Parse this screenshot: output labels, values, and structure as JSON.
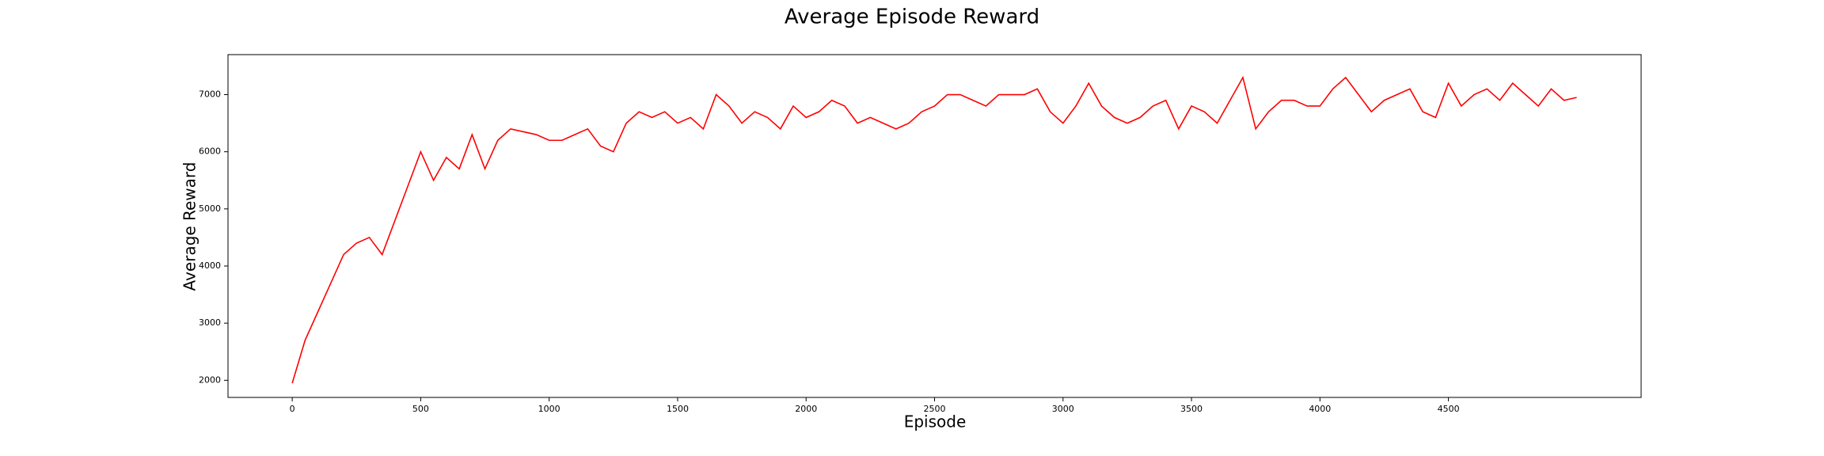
{
  "chart_data": {
    "type": "line",
    "title": "Average Episode Reward",
    "x_label": "Episode",
    "y_label": "Average Reward",
    "x": [
      0,
      50,
      100,
      150,
      200,
      250,
      300,
      350,
      400,
      450,
      500,
      550,
      600,
      650,
      700,
      750,
      800,
      850,
      900,
      950,
      1000,
      1050,
      1100,
      1150,
      1200,
      1250,
      1300,
      1350,
      1400,
      1450,
      1500,
      1550,
      1600,
      1650,
      1700,
      1750,
      1800,
      1850,
      1900,
      1950,
      2000,
      2050,
      2100,
      2150,
      2200,
      2250,
      2300,
      2350,
      2400,
      2450,
      2500,
      2550,
      2600,
      2650,
      2700,
      2750,
      2800,
      2850,
      2900,
      2950,
      3000,
      3050,
      3100,
      3150,
      3200,
      3250,
      3300,
      3350,
      3400,
      3450,
      3500,
      3550,
      3600,
      3650,
      3700,
      3750,
      3800,
      3850,
      3900,
      3950,
      4000,
      4050,
      4100,
      4150,
      4200,
      4250,
      4300,
      4350,
      4400,
      4450,
      4500,
      4550,
      4600,
      4650,
      4700,
      4750,
      4800,
      4850,
      4900,
      4950,
      4999
    ],
    "series": [
      {
        "name": "Average Reward",
        "color": "#ff0000",
        "values": [
          1950,
          2700,
          3200,
          3700,
          4200,
          4400,
          4500,
          4200,
          4800,
          5400,
          6000,
          5500,
          5900,
          5700,
          6300,
          5700,
          6200,
          6400,
          6350,
          6300,
          6200,
          6200,
          6300,
          6400,
          6100,
          6000,
          6500,
          6700,
          6600,
          6700,
          6500,
          6600,
          6400,
          7000,
          6800,
          6500,
          6700,
          6600,
          6400,
          6800,
          6600,
          6700,
          6900,
          6800,
          6500,
          6600,
          6500,
          6400,
          6500,
          6700,
          6800,
          7000,
          7000,
          6900,
          6800,
          7000,
          7000,
          7000,
          7100,
          6700,
          6500,
          6800,
          7200,
          6800,
          6600,
          6500,
          6600,
          6800,
          6900,
          6400,
          6800,
          6700,
          6500,
          6900,
          7300,
          6400,
          6700,
          6900,
          6900,
          6800,
          6800,
          7100,
          7300,
          7000,
          6700,
          6900,
          7000,
          7100,
          6700,
          6600,
          7200,
          6800,
          7000,
          7100,
          6900,
          7200,
          7000,
          6800,
          7100,
          6900,
          6950
        ]
      }
    ],
    "xlim": [
      -250,
      5250
    ],
    "ylim": [
      1700,
      7700
    ],
    "xticks": [
      0,
      500,
      1000,
      1500,
      2000,
      2500,
      3000,
      3500,
      4000,
      4500
    ],
    "yticks": [
      2000,
      3000,
      4000,
      5000,
      6000,
      7000
    ]
  }
}
